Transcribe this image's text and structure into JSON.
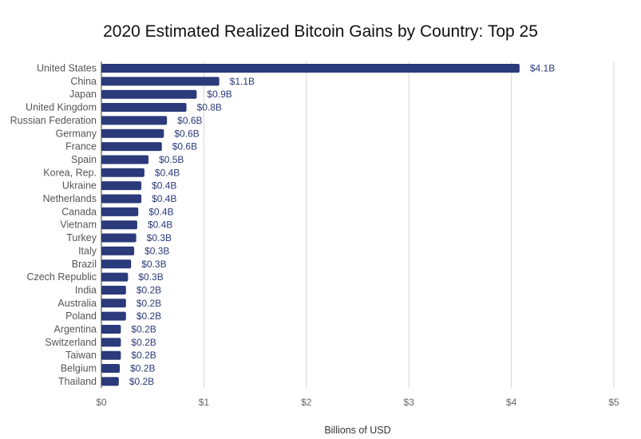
{
  "chart_data": {
    "type": "bar",
    "orientation": "horizontal",
    "title": "2020 Estimated Realized Bitcoin Gains by Country: Top 25",
    "xlabel": "Billions of USD",
    "ylabel": "",
    "xlim": [
      0,
      5
    ],
    "x_ticks": [
      0,
      1,
      2,
      3,
      4,
      5
    ],
    "x_tick_labels": [
      "$0",
      "$1",
      "$2",
      "$3",
      "$4",
      "$5"
    ],
    "grid": true,
    "bar_color": "#2b3a7a",
    "categories": [
      "United States",
      "China",
      "Japan",
      "United Kingdom",
      "Russian Federation",
      "Germany",
      "France",
      "Spain",
      "Korea, Rep.",
      "Ukraine",
      "Netherlands",
      "Canada",
      "Vietnam",
      "Turkey",
      "Italy",
      "Brazil",
      "Czech Republic",
      "India",
      "Australia",
      "Poland",
      "Argentina",
      "Switzerland",
      "Taiwan",
      "Belgium",
      "Thailand"
    ],
    "values": [
      4.08,
      1.15,
      0.93,
      0.83,
      0.64,
      0.61,
      0.59,
      0.46,
      0.42,
      0.39,
      0.39,
      0.36,
      0.35,
      0.34,
      0.32,
      0.29,
      0.26,
      0.24,
      0.24,
      0.24,
      0.19,
      0.19,
      0.19,
      0.18,
      0.17
    ],
    "data_labels": [
      "$4.1B",
      "$1.1B",
      "$0.9B",
      "$0.8B",
      "$0.6B",
      "$0.6B",
      "$0.6B",
      "$0.5B",
      "$0.4B",
      "$0.4B",
      "$0.4B",
      "$0.4B",
      "$0.4B",
      "$0.3B",
      "$0.3B",
      "$0.3B",
      "$0.3B",
      "$0.2B",
      "$0.2B",
      "$0.2B",
      "$0.2B",
      "$0.2B",
      "$0.2B",
      "$0.2B",
      "$0.2B"
    ]
  }
}
